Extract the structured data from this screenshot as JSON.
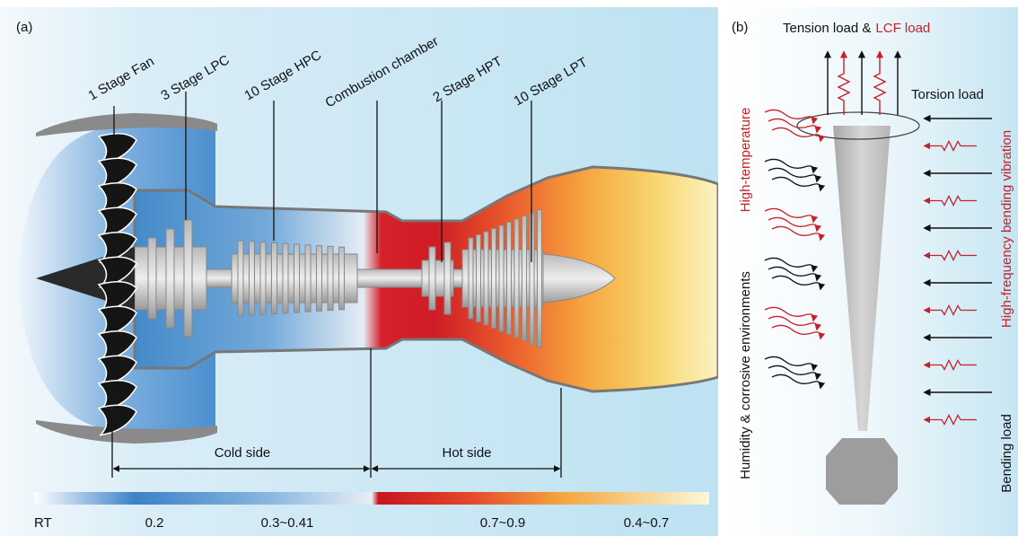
{
  "panel_a": {
    "label": "(a)",
    "components": [
      "1 Stage Fan",
      "3 Stage LPC",
      "10 Stage HPC",
      "Combustion chamber",
      "2 Stage HPT",
      "10 Stage LPT"
    ],
    "cold_side": "Cold side",
    "hot_side": "Hot side",
    "scale_labels": [
      "RT",
      "0.2",
      "0.3~0.41",
      "0.7~0.9",
      "0.4~0.7"
    ]
  },
  "panel_b": {
    "label": "(b)",
    "tension_load": "Tension load &",
    "lcf_load": "LCF load",
    "torsion_load": "Torsion load",
    "high_temperature": "High-temperature",
    "humidity": "Humidity & corrosive environments",
    "vibration": "High-frequency bending vibration",
    "bending_load": "Bending load"
  }
}
